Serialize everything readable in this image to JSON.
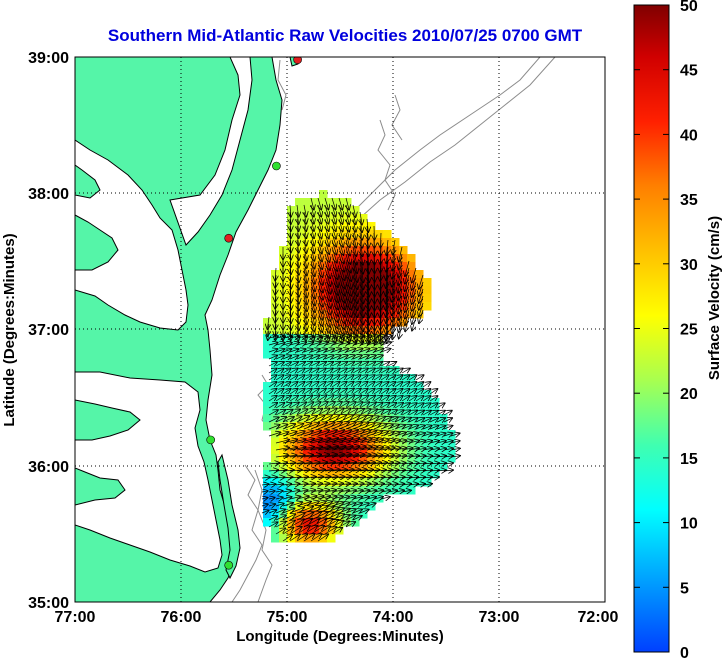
{
  "title": "Southern Mid-Atlantic Raw Velocities 2010/07/25 0700 GMT",
  "xlabel": "Longitude (Degrees:Minutes)",
  "ylabel": "Latitude (Degrees:Minutes)",
  "colorbar": {
    "label": "Surface Velocity (cm/s)",
    "min": 0,
    "max": 50,
    "ticks": [
      "0",
      "5",
      "10",
      "15",
      "20",
      "25",
      "30",
      "35",
      "40",
      "45",
      "50"
    ]
  },
  "axes": {
    "lon_range": [
      -77,
      -72
    ],
    "lat_range": [
      35,
      39
    ],
    "x_ticks": [
      "77:00",
      "76:00",
      "75:00",
      "74:00",
      "73:00",
      "72:00"
    ],
    "y_ticks": [
      "35:00",
      "36:00",
      "37:00",
      "38:00",
      "39:00"
    ],
    "grid": "dotted"
  },
  "colors": {
    "land": "#55F5A8",
    "ocean": "#ffffff",
    "title": "#0000DD",
    "coast": "#000000",
    "bathymetry": "#8c8c8c",
    "station_red": "#e02020",
    "station_green": "#30e030"
  },
  "stations": [
    {
      "lon": -74.9,
      "lat": 38.98,
      "status": "red"
    },
    {
      "lon": -75.1,
      "lat": 38.2,
      "status": "green"
    },
    {
      "lon": -75.55,
      "lat": 37.67,
      "status": "red"
    },
    {
      "lon": -75.72,
      "lat": 36.19,
      "status": "green"
    },
    {
      "lon": -75.55,
      "lat": 35.27,
      "status": "green"
    }
  ]
}
